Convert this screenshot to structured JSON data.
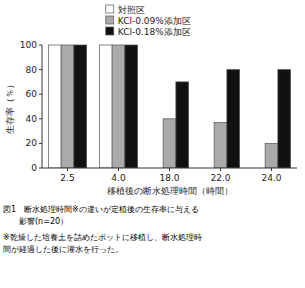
{
  "chart_data": {
    "type": "bar",
    "categories": [
      "2.5",
      "4.0",
      "18.0",
      "22.0",
      "24.0"
    ],
    "series": [
      {
        "name": "対照区",
        "color": "#ffffff",
        "values": [
          100,
          100,
          0,
          0,
          0
        ]
      },
      {
        "name": "KCl-0.09%添加区",
        "color": "#aaaaaa",
        "values": [
          100,
          100,
          40,
          37,
          20
        ]
      },
      {
        "name": "KCl-0.18%添加区",
        "color": "#111111",
        "values": [
          100,
          100,
          70,
          80,
          80
        ]
      }
    ],
    "xlabel": "移植後の断水処理時間（時間）",
    "ylabel": "生存率（％）",
    "ylim": [
      0,
      100
    ],
    "yticks": [
      0,
      20,
      40,
      60,
      80,
      100
    ],
    "grid": false,
    "legend": "top",
    "annotations": [
      "図1　断水処理時間※の違いが定植後の生存率に与える",
      "　　影響(n=20）",
      "※乾燥した培養土を詰めたポットに移植し、断水処理時",
      "間が経過した後に灌水を行った。"
    ]
  }
}
